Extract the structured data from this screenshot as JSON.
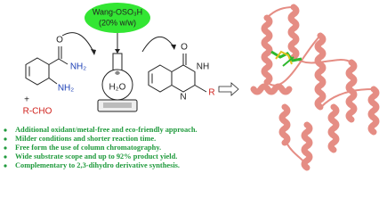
{
  "reagent": {
    "name": "Wang-OSO₃H",
    "loading": "(20% w/w)"
  },
  "solvent": "H₂O",
  "reactants": {
    "amide_o": "O",
    "amide_nh2": "NH₂",
    "amine_nh2": "NH₂",
    "plus": "+",
    "aldehyde": "R-CHO"
  },
  "product": {
    "o": "O",
    "nh": "NH",
    "n": "N",
    "r": "R"
  },
  "features": [
    "Additional oxidant/metal-free and eco-friendly approach.",
    "Milder conditions and shorter reaction time.",
    "Free form the use of column chromatography.",
    "Wide substrate scope and up to 92% product yield.",
    "Complementary to 2,3-dihydro derivative synthesis."
  ]
}
